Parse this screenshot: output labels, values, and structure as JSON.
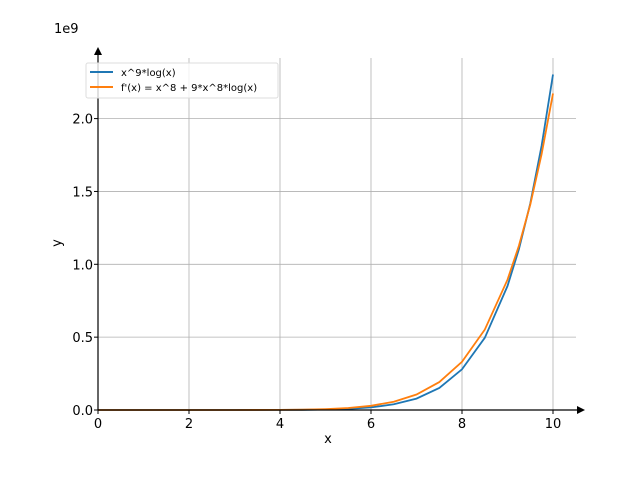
{
  "chart_data": {
    "type": "line",
    "title": "",
    "xlabel": "x",
    "ylabel": "y",
    "y_offset_label": "1e9",
    "xlim": [
      0,
      10.5
    ],
    "ylim": [
      0,
      2.4
    ],
    "grid": true,
    "legend_placement": "top-left",
    "x_ticks": [
      0,
      2,
      4,
      6,
      8,
      10
    ],
    "x_tick_labels": [
      "0",
      "2",
      "4",
      "6",
      "8",
      "10"
    ],
    "y_ticks": [
      0,
      0.5,
      1.0,
      1.5,
      2.0
    ],
    "y_tick_labels": [
      "0.0",
      "0.5",
      "1.0",
      "1.5",
      "2.0"
    ],
    "x": [
      0,
      1,
      2,
      3,
      4,
      4.5,
      5,
      5.5,
      6,
      6.5,
      7,
      7.5,
      8,
      8.5,
      9,
      9.25,
      9.5,
      9.75,
      10
    ],
    "series": [
      {
        "name": "x^9*log(x)",
        "color": "#1f77b4",
        "values": [
          0,
          0,
          0,
          2e-05,
          0.00036,
          0.0011,
          0.0031,
          0.0079,
          0.0181,
          0.0388,
          0.0785,
          0.1513,
          0.2791,
          0.4957,
          0.8512,
          1.1029,
          1.4189,
          1.8133,
          2.3026
        ]
      },
      {
        "name": "f'(x) = x^8 + 9*x^8*log(x)",
        "color": "#ff7f0e",
        "values": [
          0,
          0,
          0,
          0.0001,
          0.0009,
          0.0024,
          0.006,
          0.0137,
          0.0288,
          0.0569,
          0.1067,
          0.1916,
          0.3308,
          0.5521,
          0.8943,
          1.1267,
          1.4106,
          1.7555,
          2.1723
        ]
      }
    ]
  }
}
